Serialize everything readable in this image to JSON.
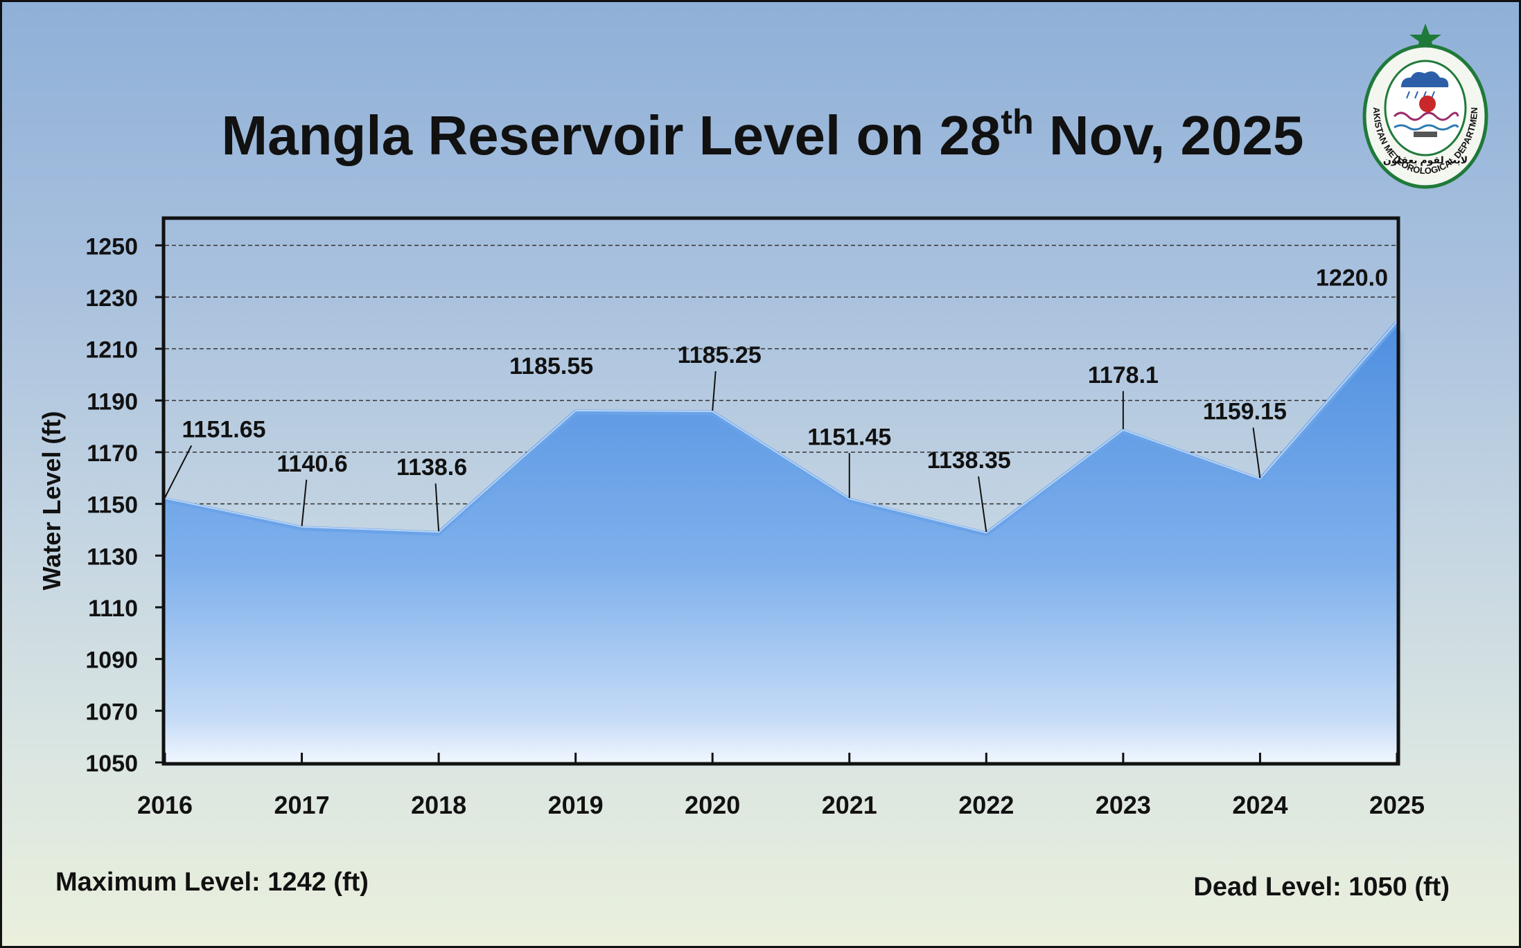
{
  "title": {
    "text_before_sup": "Mangla Reservoir Level on 28",
    "sup": "th",
    "text_after_sup": " Nov, 2025"
  },
  "logo": {
    "name": "PAKISTAN METEOROLOGICAL DEPARTMENT",
    "urdu_motto": "لایت لقوم یعقلون"
  },
  "footer": {
    "max_level": "Maximum Level: 1242 (ft)",
    "dead_level": "Dead Level: 1050 (ft)"
  },
  "colors": {
    "area_top": "#4f8fe0",
    "area_bottom": "#e8f2ff",
    "line": "#6aa3e8",
    "plot_border": "#111111",
    "grid": "#333333"
  },
  "chart_data": {
    "type": "area",
    "title": "Mangla Reservoir Level on 28th Nov, 2025",
    "xlabel": "",
    "ylabel": "Water Level (ft)",
    "ylim": [
      1050,
      1260
    ],
    "yticks": [
      1050,
      1070,
      1090,
      1110,
      1130,
      1150,
      1170,
      1190,
      1210,
      1230,
      1250
    ],
    "grid": true,
    "categories": [
      "2016",
      "2017",
      "2018",
      "2019",
      "2020",
      "2021",
      "2022",
      "2023",
      "2024",
      "2025"
    ],
    "values": [
      1151.65,
      1140.6,
      1138.6,
      1185.55,
      1185.25,
      1151.45,
      1138.35,
      1178.1,
      1159.15,
      1220.0
    ],
    "data_labels": [
      "1151.65",
      "1140.6",
      "1138.6",
      "1185.55",
      "1185.25",
      "1151.45",
      "1138.35",
      "1178.1",
      "1159.15",
      "1220.0"
    ]
  }
}
